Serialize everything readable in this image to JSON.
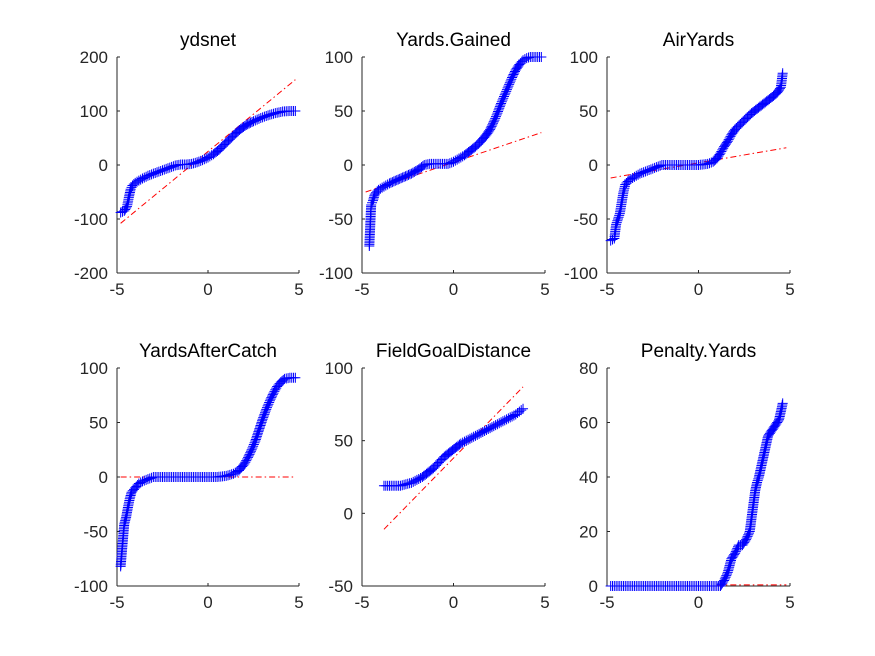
{
  "chart_data": [
    {
      "type": "scatter",
      "title": "ydsnet",
      "xlim": [
        -5,
        5
      ],
      "ylim": [
        -200,
        200
      ],
      "xticks": [
        "-5",
        "0",
        "5"
      ],
      "yticks": [
        "200",
        "100",
        "0",
        "-100",
        "-200"
      ],
      "xtick_values": [
        -5,
        0,
        5
      ],
      "ytick_values": [
        200,
        100,
        0,
        -100,
        -200
      ],
      "reference_line": [
        [
          -4.8,
          -108
        ],
        [
          4.8,
          158
        ]
      ],
      "points": [
        [
          -4.8,
          -88
        ],
        [
          -4.6,
          -85
        ],
        [
          -4.45,
          -77
        ],
        [
          -4.35,
          -60
        ],
        [
          -4.25,
          -45
        ],
        [
          -4.15,
          -38
        ],
        [
          -4.0,
          -33
        ],
        [
          -3.8,
          -29
        ],
        [
          -3.6,
          -25
        ],
        [
          -3.3,
          -20
        ],
        [
          -3.0,
          -16
        ],
        [
          -2.6,
          -11
        ],
        [
          -2.2,
          -6
        ],
        [
          -1.8,
          -1
        ],
        [
          -1.5,
          1
        ],
        [
          -1.2,
          1
        ],
        [
          -0.9,
          2
        ],
        [
          -0.6,
          5
        ],
        [
          -0.3,
          9
        ],
        [
          0,
          14
        ],
        [
          0.3,
          20
        ],
        [
          0.6,
          28
        ],
        [
          0.9,
          38
        ],
        [
          1.2,
          48
        ],
        [
          1.5,
          58
        ],
        [
          1.8,
          67
        ],
        [
          2.1,
          74
        ],
        [
          2.5,
          81
        ],
        [
          2.9,
          87
        ],
        [
          3.3,
          92
        ],
        [
          3.7,
          96
        ],
        [
          4.1,
          99
        ],
        [
          4.5,
          100
        ],
        [
          4.8,
          100
        ]
      ]
    },
    {
      "type": "scatter",
      "title": "Yards.Gained",
      "xlim": [
        -5,
        5
      ],
      "ylim": [
        -100,
        100
      ],
      "xticks": [
        "-5",
        "0",
        "5"
      ],
      "yticks": [
        "100",
        "50",
        "0",
        "-50",
        "-100"
      ],
      "xtick_values": [
        -5,
        0,
        5
      ],
      "ytick_values": [
        100,
        50,
        0,
        -50,
        -100
      ],
      "reference_line": [
        [
          -4.8,
          -25
        ],
        [
          4.8,
          30
        ]
      ],
      "points": [
        [
          -4.6,
          -75
        ],
        [
          -4.5,
          -37
        ],
        [
          -4.4,
          -33
        ],
        [
          -4.3,
          -27
        ],
        [
          -4.1,
          -23
        ],
        [
          -3.8,
          -20
        ],
        [
          -3.5,
          -17
        ],
        [
          -3.1,
          -14
        ],
        [
          -2.7,
          -11
        ],
        [
          -2.3,
          -8
        ],
        [
          -1.9,
          -4
        ],
        [
          -1.6,
          0
        ],
        [
          -1.3,
          1
        ],
        [
          -1.0,
          1
        ],
        [
          -0.6,
          1
        ],
        [
          -0.3,
          1
        ],
        [
          0,
          3
        ],
        [
          0.3,
          6
        ],
        [
          0.6,
          9
        ],
        [
          0.9,
          13
        ],
        [
          1.2,
          17
        ],
        [
          1.5,
          22
        ],
        [
          1.8,
          28
        ],
        [
          2.0,
          33
        ],
        [
          2.2,
          40
        ],
        [
          2.4,
          48
        ],
        [
          2.6,
          57
        ],
        [
          2.8,
          65
        ],
        [
          3.0,
          73
        ],
        [
          3.2,
          81
        ],
        [
          3.4,
          88
        ],
        [
          3.6,
          93
        ],
        [
          3.8,
          97
        ],
        [
          4.0,
          99
        ],
        [
          4.2,
          100
        ],
        [
          4.6,
          100
        ],
        [
          4.8,
          100
        ]
      ]
    },
    {
      "type": "scatter",
      "title": "AirYards",
      "xlim": [
        -5,
        5
      ],
      "ylim": [
        -100,
        100
      ],
      "xticks": [
        "-5",
        "0",
        "5"
      ],
      "yticks": [
        "100",
        "50",
        "0",
        "-50",
        "-100"
      ],
      "xtick_values": [
        -5,
        0,
        5
      ],
      "ytick_values": [
        100,
        50,
        0,
        -50,
        -100
      ],
      "reference_line": [
        [
          -4.8,
          -12
        ],
        [
          4.8,
          16
        ]
      ],
      "points": [
        [
          -4.8,
          -70
        ],
        [
          -4.6,
          -68
        ],
        [
          -4.5,
          -55
        ],
        [
          -4.4,
          -50
        ],
        [
          -4.3,
          -45
        ],
        [
          -4.2,
          -35
        ],
        [
          -4.1,
          -25
        ],
        [
          -4.0,
          -18
        ],
        [
          -3.8,
          -14
        ],
        [
          -3.5,
          -11
        ],
        [
          -3.2,
          -8
        ],
        [
          -2.9,
          -6
        ],
        [
          -2.6,
          -4
        ],
        [
          -2.3,
          -2
        ],
        [
          -2.0,
          0
        ],
        [
          -1.5,
          0
        ],
        [
          -1.0,
          0
        ],
        [
          -0.5,
          0
        ],
        [
          0,
          0
        ],
        [
          0.5,
          1
        ],
        [
          0.8,
          3
        ],
        [
          1.0,
          6
        ],
        [
          1.2,
          11
        ],
        [
          1.4,
          17
        ],
        [
          1.6,
          22
        ],
        [
          1.8,
          28
        ],
        [
          2.0,
          33
        ],
        [
          2.3,
          38
        ],
        [
          2.6,
          43
        ],
        [
          2.9,
          48
        ],
        [
          3.2,
          52
        ],
        [
          3.5,
          56
        ],
        [
          3.8,
          60
        ],
        [
          4.1,
          64
        ],
        [
          4.3,
          67
        ],
        [
          4.5,
          72
        ],
        [
          4.6,
          85
        ]
      ]
    },
    {
      "type": "scatter",
      "title": "YardsAfterCatch",
      "xlim": [
        -5,
        5
      ],
      "ylim": [
        -100,
        100
      ],
      "xticks": [
        "-5",
        "0",
        "5"
      ],
      "yticks": [
        "100",
        "50",
        "0",
        "-50",
        "-100"
      ],
      "xtick_values": [
        -5,
        0,
        5
      ],
      "ytick_values": [
        100,
        50,
        0,
        -50,
        -100
      ],
      "reference_line": [
        [
          -4.8,
          0
        ],
        [
          4.8,
          0
        ]
      ],
      "points": [
        [
          -4.8,
          -82
        ],
        [
          -4.6,
          -43
        ],
        [
          -4.5,
          -37
        ],
        [
          -4.4,
          -28
        ],
        [
          -4.3,
          -20
        ],
        [
          -4.2,
          -14
        ],
        [
          -4.0,
          -10
        ],
        [
          -3.8,
          -6
        ],
        [
          -3.6,
          -4
        ],
        [
          -3.3,
          -2
        ],
        [
          -3.0,
          0
        ],
        [
          -2.5,
          0
        ],
        [
          -2.0,
          0
        ],
        [
          -1.5,
          0
        ],
        [
          -1.0,
          0
        ],
        [
          -0.5,
          0
        ],
        [
          0,
          0
        ],
        [
          0.5,
          0
        ],
        [
          1.0,
          1
        ],
        [
          1.4,
          3
        ],
        [
          1.7,
          6
        ],
        [
          2.0,
          12
        ],
        [
          2.2,
          18
        ],
        [
          2.4,
          25
        ],
        [
          2.6,
          33
        ],
        [
          2.8,
          43
        ],
        [
          3.0,
          53
        ],
        [
          3.2,
          62
        ],
        [
          3.4,
          70
        ],
        [
          3.6,
          77
        ],
        [
          3.8,
          83
        ],
        [
          4.0,
          87
        ],
        [
          4.2,
          90
        ],
        [
          4.5,
          91
        ],
        [
          4.8,
          91
        ]
      ]
    },
    {
      "type": "scatter",
      "title": "FieldGoalDistance",
      "xlim": [
        -5,
        5
      ],
      "ylim": [
        -50,
        100
      ],
      "xticks": [
        "-5",
        "0",
        "5"
      ],
      "yticks": [
        "100",
        "50",
        "0",
        "-50"
      ],
      "xtick_values": [
        -5,
        0,
        5
      ],
      "ytick_values": [
        100,
        50,
        0,
        -50
      ],
      "reference_line": [
        [
          -3.8,
          -11
        ],
        [
          3.8,
          87
        ]
      ],
      "points": [
        [
          -3.8,
          19
        ],
        [
          -3.5,
          19
        ],
        [
          -3.2,
          19
        ],
        [
          -2.9,
          19
        ],
        [
          -2.6,
          20
        ],
        [
          -2.3,
          21
        ],
        [
          -2.0,
          23
        ],
        [
          -1.7,
          25
        ],
        [
          -1.4,
          28
        ],
        [
          -1.1,
          31
        ],
        [
          -0.8,
          35
        ],
        [
          -0.5,
          39
        ],
        [
          -0.2,
          42
        ],
        [
          0.1,
          45
        ],
        [
          0.4,
          48
        ],
        [
          0.7,
          50
        ],
        [
          1.0,
          52
        ],
        [
          1.3,
          54
        ],
        [
          1.6,
          56
        ],
        [
          1.9,
          58
        ],
        [
          2.2,
          60
        ],
        [
          2.5,
          62
        ],
        [
          2.8,
          64
        ],
        [
          3.1,
          66
        ],
        [
          3.4,
          68
        ],
        [
          3.6,
          70
        ],
        [
          3.8,
          72
        ]
      ]
    },
    {
      "type": "scatter",
      "title": "Penalty.Yards",
      "xlim": [
        -5,
        5
      ],
      "ylim": [
        0,
        80
      ],
      "xticks": [
        "-5",
        "0",
        "5"
      ],
      "yticks": [
        "80",
        "60",
        "40",
        "20",
        "0"
      ],
      "xtick_values": [
        -5,
        0,
        5
      ],
      "ytick_values": [
        80,
        60,
        40,
        20,
        0
      ],
      "reference_line": [
        [
          1.0,
          0.4
        ],
        [
          4.8,
          0.4
        ]
      ],
      "points": [
        [
          -4.8,
          0
        ],
        [
          -4.5,
          0
        ],
        [
          -4.0,
          0
        ],
        [
          -3.5,
          0
        ],
        [
          -3.0,
          0
        ],
        [
          -2.5,
          0
        ],
        [
          -2.0,
          0
        ],
        [
          -1.5,
          0
        ],
        [
          -1.0,
          0
        ],
        [
          -0.5,
          0
        ],
        [
          0,
          0
        ],
        [
          0.5,
          0
        ],
        [
          1.0,
          0
        ],
        [
          1.2,
          0
        ],
        [
          1.4,
          2
        ],
        [
          1.6,
          5
        ],
        [
          1.8,
          10
        ],
        [
          2.0,
          12
        ],
        [
          2.2,
          15
        ],
        [
          2.4,
          15
        ],
        [
          2.6,
          17
        ],
        [
          2.8,
          20
        ],
        [
          2.9,
          25
        ],
        [
          3.0,
          30
        ],
        [
          3.1,
          35
        ],
        [
          3.2,
          38
        ],
        [
          3.3,
          40
        ],
        [
          3.4,
          43
        ],
        [
          3.5,
          46
        ],
        [
          3.6,
          49
        ],
        [
          3.7,
          52
        ],
        [
          3.8,
          55
        ],
        [
          4.0,
          57
        ],
        [
          4.2,
          59
        ],
        [
          4.4,
          61
        ],
        [
          4.6,
          67
        ]
      ]
    }
  ]
}
